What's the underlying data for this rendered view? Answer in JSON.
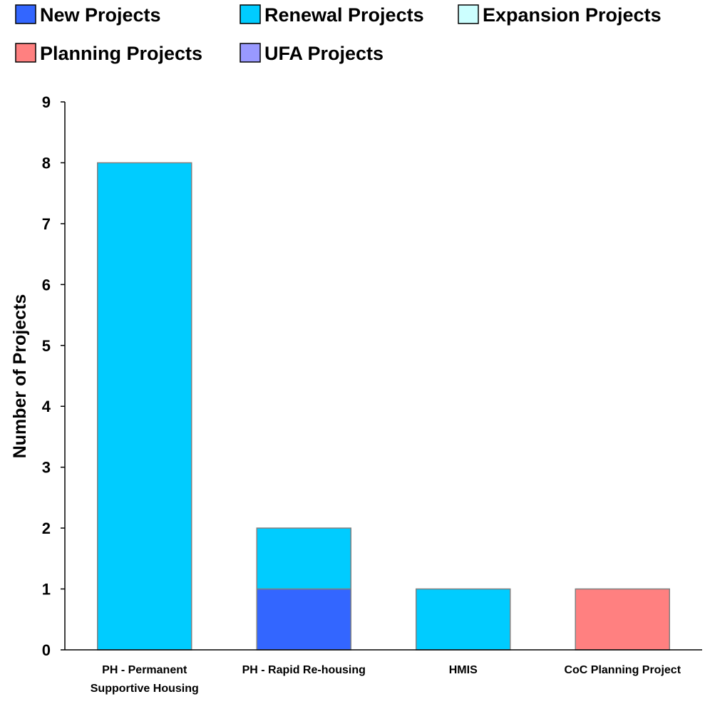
{
  "chart_data": {
    "type": "bar",
    "stacked": true,
    "title": "",
    "xlabel": "",
    "ylabel": "Number of Projects",
    "ylim": [
      0,
      9
    ],
    "yticks": [
      0,
      1,
      2,
      3,
      4,
      5,
      6,
      7,
      8,
      9
    ],
    "grid": false,
    "legend_position": "top",
    "categories": [
      [
        "PH - Permanent",
        "Supportive Housing"
      ],
      [
        "PH - Rapid Re-housing"
      ],
      [
        "HMIS"
      ],
      [
        "CoC Planning Project"
      ]
    ],
    "series": [
      {
        "name": "New Projects",
        "color": "#3366ff",
        "values": [
          0,
          1,
          0,
          0
        ]
      },
      {
        "name": "Renewal Projects",
        "color": "#00ccff",
        "values": [
          8,
          1,
          1,
          0
        ]
      },
      {
        "name": "Expansion Projects",
        "color": "#ccffff",
        "values": [
          0,
          0,
          0,
          0
        ]
      },
      {
        "name": "Planning Projects",
        "color": "#ff8080",
        "values": [
          0,
          0,
          0,
          1
        ]
      },
      {
        "name": "UFA Projects",
        "color": "#9999ff",
        "values": [
          0,
          0,
          0,
          0
        ]
      }
    ]
  }
}
